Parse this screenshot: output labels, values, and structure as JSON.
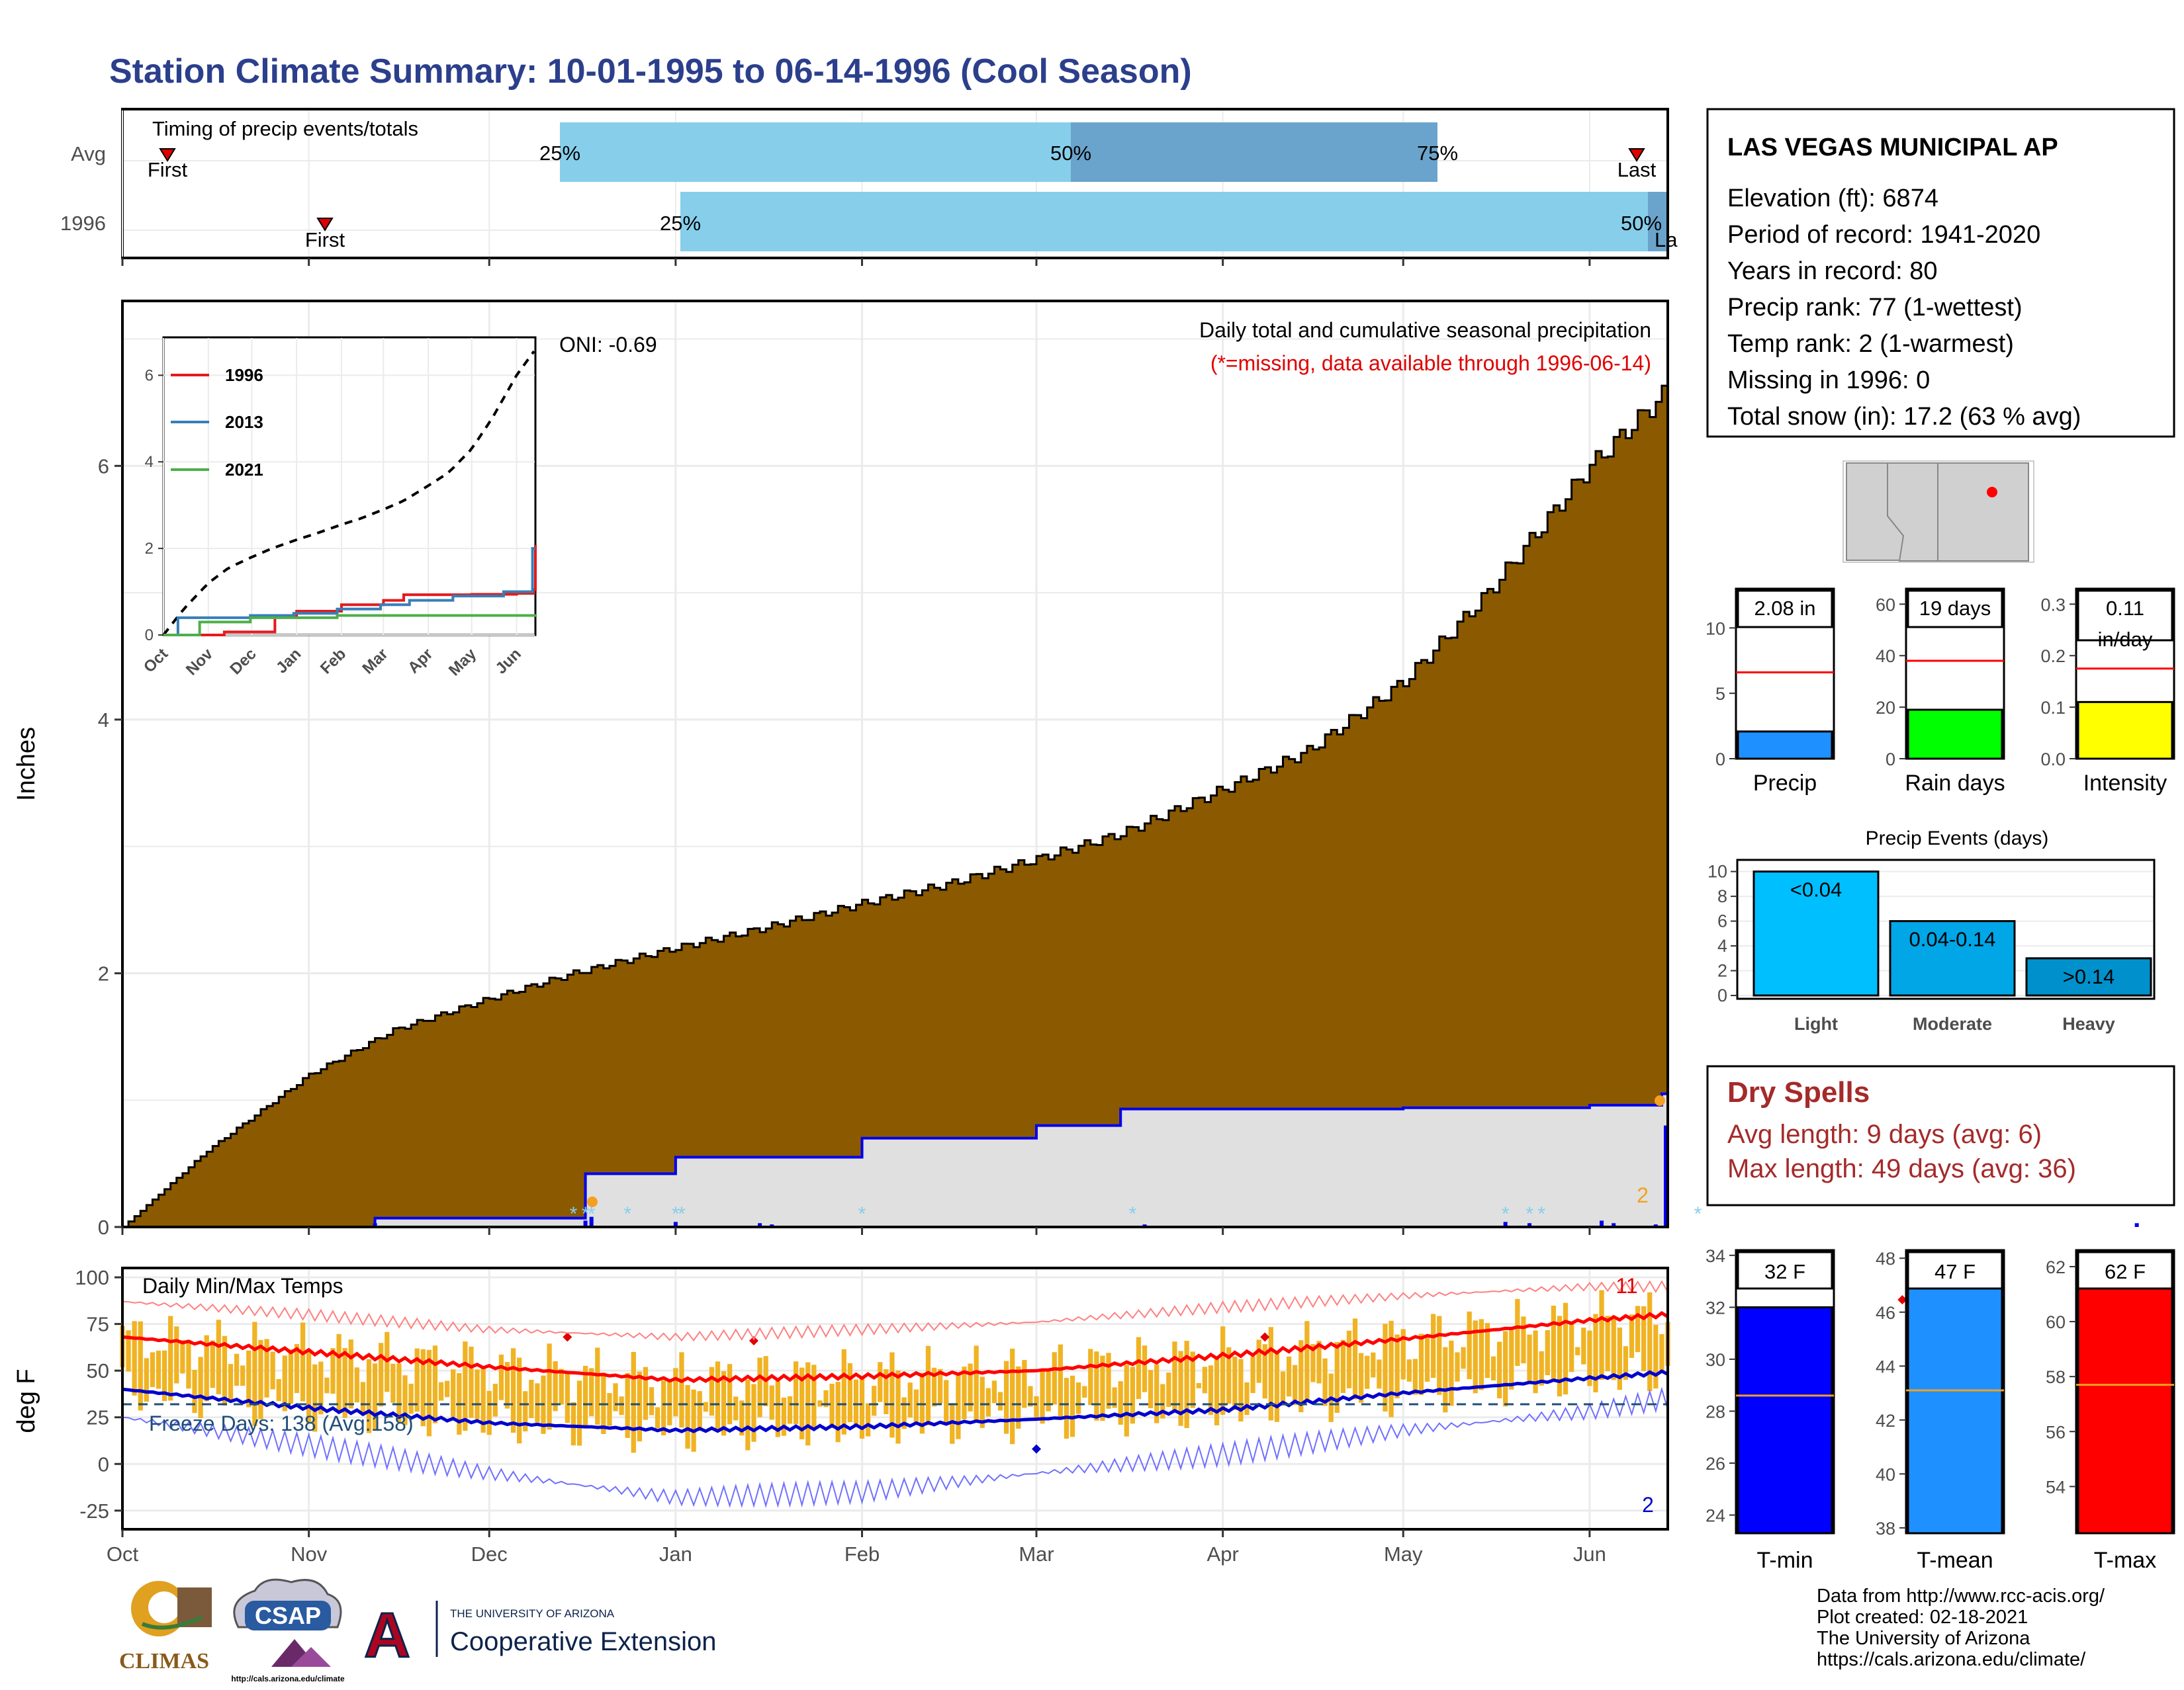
{
  "title": "Station Climate Summary: 10-01-1995 to 06-14-1996 (Cool Season)",
  "colors": {
    "title": "#2b3f8c",
    "cumulative_fill": "#8b5a00",
    "avg_fill": "#e0e0e0",
    "daily_line": "#0000ee",
    "bar_light": "#87ceeb",
    "bar_dark": "#6aa4cc",
    "temp_bar": "#f0b323",
    "max_line": "#ff0000",
    "min_line": "#0000cc",
    "dry_spell": "#a52a2a"
  },
  "timing_panel": {
    "title": "Timing of precip events/totals",
    "rows": [
      "Avg",
      "1996"
    ],
    "avg": {
      "first": "First",
      "p25": "25%",
      "p50": "50%",
      "p75": "75%",
      "last": "Last"
    },
    "year": {
      "first": "First",
      "p25": "25%",
      "p50": "50%",
      "last_partial": "La"
    }
  },
  "station": {
    "name": "LAS VEGAS MUNICIPAL AP",
    "lines": [
      "Elevation (ft): 6874",
      "Period of record: 1941-2020",
      "Years in record: 80",
      "Precip rank: 77 (1-wettest)",
      "Temp rank: 2 (1-warmest)",
      "Missing in 1996: 0",
      "Total snow (in): 17.2 (63 % avg)"
    ]
  },
  "precip_panel": {
    "ylabel": "Inches",
    "heading": "Daily total and cumulative seasonal precipitation",
    "missing_note": "(*=missing, data available through 1996-06-14)",
    "oni": "ONI: -0.69",
    "count_label": "2",
    "yticks": [
      "0",
      "2",
      "4",
      "6"
    ],
    "xticks": [
      "Oct",
      "Nov",
      "Dec",
      "Jan",
      "Feb",
      "Mar",
      "Apr",
      "May",
      "Jun"
    ]
  },
  "inset": {
    "legend": [
      "1996",
      "2013",
      "2021"
    ],
    "legend_colors": [
      "#e41a1c",
      "#377eb8",
      "#4daf4a"
    ],
    "yticks": [
      "0",
      "2",
      "4",
      "6"
    ],
    "xticks": [
      "Oct",
      "Nov",
      "Dec",
      "Jan",
      "Feb",
      "Mar",
      "Apr",
      "May",
      "Jun"
    ]
  },
  "temp_panel": {
    "ylabel": "deg F",
    "title": "Daily Min/Max Temps",
    "freeze": "Freeze Days: 138 (Avg:158)",
    "max_count": "11",
    "min_count": "2",
    "yticks": [
      "-25",
      "0",
      "25",
      "50",
      "75",
      "100"
    ],
    "xticks": [
      "Oct",
      "Nov",
      "Dec",
      "Jan",
      "Feb",
      "Mar",
      "Apr",
      "May",
      "Jun"
    ]
  },
  "mini_bars": [
    {
      "label": "Precip",
      "value_text": "2.08 in",
      "yticks": [
        "0",
        "5",
        "10"
      ],
      "color": "#1e90ff"
    },
    {
      "label": "Rain days",
      "value_text": "19 days",
      "yticks": [
        "0",
        "20",
        "40",
        "60"
      ],
      "color": "#00ff00"
    },
    {
      "label": "Intensity",
      "value_text_1": "0.11",
      "value_text_2": "in/day",
      "yticks": [
        "0.0",
        "0.1",
        "0.2",
        "0.3"
      ],
      "color": "#ffff00"
    }
  ],
  "events_panel": {
    "title": "Precip Events (days)",
    "yticks": [
      "0",
      "2",
      "4",
      "6",
      "8",
      "10"
    ],
    "bars": [
      {
        "label": "Light",
        "tag": "<0.04",
        "value": 10,
        "color": "#00bfff"
      },
      {
        "label": "Moderate",
        "tag": "0.04-0.14",
        "value": 6,
        "color": "#00a6e6"
      },
      {
        "label": "Heavy",
        "tag": ">0.14",
        "value": 3,
        "color": "#0091cc"
      }
    ]
  },
  "dry_spells": {
    "title": "Dry Spells",
    "avg": "Avg length: 9 days (avg: 6)",
    "max": "Max length: 49 days (avg: 36)"
  },
  "temp_bars": [
    {
      "label": "T-min",
      "value_text": "32 F",
      "yticks": [
        "24",
        "26",
        "28",
        "30",
        "32",
        "34"
      ],
      "color": "#0000ff"
    },
    {
      "label": "T-mean",
      "value_text": "47 F",
      "yticks": [
        "38",
        "40",
        "42",
        "44",
        "46",
        "48"
      ],
      "color": "#1e90ff"
    },
    {
      "label": "T-max",
      "value_text": "62 F",
      "yticks": [
        "54",
        "56",
        "58",
        "60",
        "62"
      ],
      "color": "#ff0000"
    }
  ],
  "credits": [
    "Data from http://www.rcc-acis.org/",
    "Plot created: 02-18-2021",
    "The University of Arizona",
    "https://cals.arizona.edu/climate/"
  ],
  "logos": {
    "climas": "CLIMAS",
    "csap": "CSAP",
    "csap_url": "http://cals.arizona.edu/climate",
    "ua_line1": "THE UNIVERSITY OF ARIZONA",
    "ua_line2": "Cooperative Extension",
    "ua_letter": "A"
  },
  "chart_data": [
    {
      "type": "area",
      "title": "Daily total and cumulative seasonal precipitation",
      "ylabel": "Inches",
      "ylim": [
        0,
        7.3
      ],
      "x_range": [
        "1995-10-01",
        "1996-06-14"
      ],
      "series": [
        {
          "name": "avg_cumulative",
          "x": [
            "1995-10-01",
            "1995-10-15",
            "1995-11-01",
            "1995-11-15",
            "1995-12-01",
            "1995-12-15",
            "1996-01-01",
            "1996-01-15",
            "1996-02-01",
            "1996-02-15",
            "1996-03-01",
            "1996-03-15",
            "1996-04-01",
            "1996-04-15",
            "1996-05-01",
            "1996-05-15",
            "1996-06-01",
            "1996-06-14"
          ],
          "values": [
            0,
            0.6,
            1.2,
            1.55,
            1.8,
            2.0,
            2.2,
            2.35,
            2.55,
            2.7,
            2.9,
            3.1,
            3.45,
            3.75,
            4.3,
            5.0,
            6.0,
            6.6
          ]
        },
        {
          "name": "1996_cumulative",
          "x": [
            "1995-10-01",
            "1995-11-12",
            "1995-12-17",
            "1996-01-01",
            "1996-02-01",
            "1996-03-01",
            "1996-03-15",
            "1996-05-01",
            "1996-06-01",
            "1996-06-13",
            "1996-06-14"
          ],
          "values": [
            0,
            0.07,
            0.42,
            0.55,
            0.7,
            0.8,
            0.93,
            0.94,
            0.96,
            1.05,
            2.08
          ]
        }
      ],
      "freeze_days": 138,
      "freeze_avg": 158
    },
    {
      "type": "line",
      "title": "Daily Min/Max Temps",
      "ylabel": "deg F",
      "ylim": [
        -35,
        105
      ],
      "x": [
        "1995-10-01",
        "1995-11-01",
        "1995-12-01",
        "1996-01-01",
        "1996-02-01",
        "1996-03-01",
        "1996-04-01",
        "1996-05-01",
        "1996-06-01",
        "1996-06-14"
      ],
      "series": [
        {
          "name": "avg_max",
          "values": [
            68,
            60,
            52,
            45,
            47,
            50,
            58,
            67,
            77,
            80
          ]
        },
        {
          "name": "avg_min",
          "values": [
            40,
            30,
            22,
            18,
            20,
            24,
            29,
            38,
            46,
            49
          ]
        },
        {
          "name": "record_max",
          "values": [
            87,
            80,
            72,
            68,
            72,
            76,
            84,
            90,
            95,
            95
          ]
        },
        {
          "name": "record_min",
          "values": [
            25,
            10,
            -5,
            -18,
            -15,
            -5,
            5,
            18,
            28,
            35
          ]
        }
      ]
    },
    {
      "type": "bar",
      "title": "Precip Events (days)",
      "categories": [
        "Light",
        "Moderate",
        "Heavy"
      ],
      "values": [
        10,
        6,
        3
      ],
      "ylim": [
        0,
        10
      ]
    }
  ]
}
